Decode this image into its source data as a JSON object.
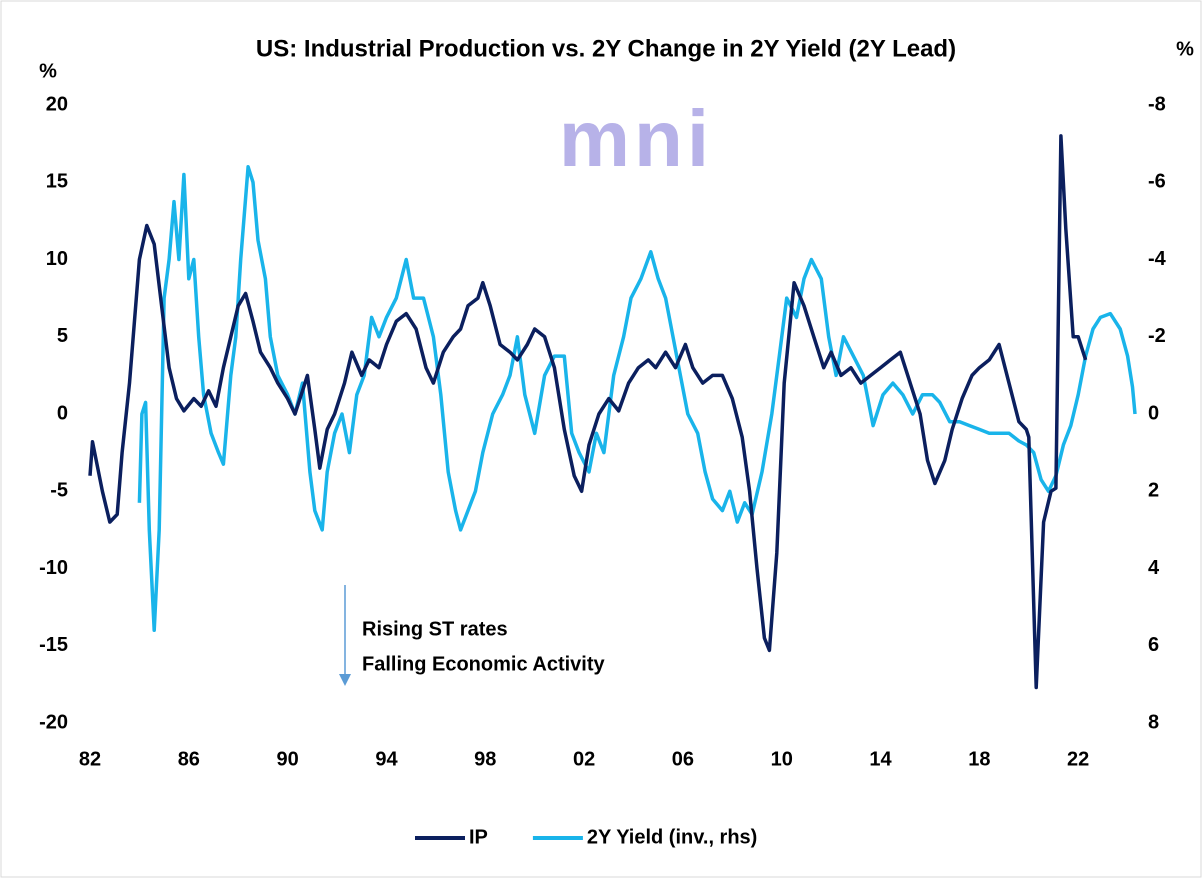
{
  "chart_data": {
    "type": "line",
    "title": "US: Industrial Production vs. 2Y Change in 2Y Yield (2Y Lead)",
    "y_label": "%",
    "y2_label": "%",
    "watermark": "mni",
    "annotations": [
      "Rising ST rates",
      "Falling Economic Activity"
    ],
    "xlim": [
      1982,
      2024.3
    ],
    "xticks": [
      {
        "value": 1982,
        "label": "82"
      },
      {
        "value": 1986,
        "label": "86"
      },
      {
        "value": 1990,
        "label": "90"
      },
      {
        "value": 1994,
        "label": "94"
      },
      {
        "value": 1998,
        "label": "98"
      },
      {
        "value": 2002,
        "label": "02"
      },
      {
        "value": 2006,
        "label": "06"
      },
      {
        "value": 2010,
        "label": "10"
      },
      {
        "value": 2014,
        "label": "14"
      },
      {
        "value": 2018,
        "label": "18"
      },
      {
        "value": 2022,
        "label": "22"
      }
    ],
    "ylim": [
      -20,
      20
    ],
    "yticks": [
      -20,
      -15,
      -10,
      -5,
      0,
      5,
      10,
      15,
      20
    ],
    "y2lim": [
      8,
      -8
    ],
    "y2ticks": [
      -8,
      -6,
      -4,
      -2,
      0,
      2,
      4,
      6,
      8
    ],
    "grid": false,
    "legend": "bottom",
    "series": [
      {
        "name": "IP",
        "color": "#0b1f5e",
        "axis": "y",
        "x": [
          1982.0,
          1982.1,
          1982.5,
          1982.8,
          1983.1,
          1983.3,
          1983.6,
          1984.0,
          1984.3,
          1984.6,
          1984.9,
          1985.2,
          1985.5,
          1985.8,
          1986.2,
          1986.5,
          1986.8,
          1987.1,
          1987.4,
          1987.7,
          1988.0,
          1988.3,
          1988.6,
          1988.9,
          1989.3,
          1989.6,
          1990.0,
          1990.3,
          1990.6,
          1990.8,
          1991.1,
          1991.3,
          1991.6,
          1991.9,
          1992.3,
          1992.6,
          1993.0,
          1993.3,
          1993.7,
          1994.0,
          1994.4,
          1994.8,
          1995.2,
          1995.6,
          1995.9,
          1996.3,
          1996.7,
          1997.0,
          1997.3,
          1997.7,
          1997.9,
          1998.2,
          1998.6,
          1999.0,
          1999.3,
          1999.7,
          2000.0,
          2000.4,
          2000.8,
          2001.2,
          2001.6,
          2001.9,
          2002.2,
          2002.6,
          2003.0,
          2003.4,
          2003.8,
          2004.2,
          2004.6,
          2004.9,
          2005.3,
          2005.7,
          2006.1,
          2006.4,
          2006.8,
          2007.2,
          2007.6,
          2008.0,
          2008.4,
          2008.7,
          2009.0,
          2009.3,
          2009.5,
          2009.8,
          2010.1,
          2010.5,
          2010.9,
          2011.3,
          2011.7,
          2012.0,
          2012.4,
          2012.8,
          2013.2,
          2013.6,
          2014.0,
          2014.4,
          2014.8,
          2015.2,
          2015.6,
          2015.9,
          2016.2,
          2016.6,
          2016.9,
          2017.3,
          2017.7,
          2018.0,
          2018.4,
          2018.8,
          2019.2,
          2019.6,
          2019.9,
          2020.0,
          2020.3,
          2020.6,
          2020.9,
          2021.1,
          2021.3,
          2021.5,
          2021.8,
          2022.0,
          2022.3
        ],
        "values": [
          -4,
          -1.8,
          -5,
          -7,
          -6.5,
          -2.5,
          2,
          10,
          12.2,
          11,
          7,
          3,
          1,
          0.2,
          1,
          0.5,
          1.5,
          0.5,
          3,
          5,
          7,
          7.8,
          6,
          4,
          3,
          2,
          1,
          0,
          1.5,
          2.5,
          -1,
          -3.5,
          -1,
          0,
          2,
          4,
          2.5,
          3.5,
          3,
          4.5,
          6,
          6.5,
          5.5,
          3,
          2,
          4,
          5,
          5.5,
          7,
          7.5,
          8.5,
          7,
          4.5,
          4,
          3.5,
          4.5,
          5.5,
          5,
          3,
          -1,
          -4,
          -5,
          -2,
          0,
          1,
          0.2,
          2,
          3,
          3.5,
          3,
          4,
          3,
          4.5,
          3,
          2,
          2.5,
          2.5,
          1,
          -1.5,
          -5,
          -10,
          -14.5,
          -15.3,
          -9,
          2,
          8.5,
          7,
          5,
          3,
          4,
          2.5,
          3,
          2,
          2.5,
          3,
          3.5,
          4,
          2,
          0,
          -3,
          -4.5,
          -3,
          -1,
          1,
          2.5,
          3,
          3.5,
          4.5,
          2,
          -0.5,
          -1,
          -1.5,
          -17.7,
          -7,
          -5,
          -4.8,
          18,
          12,
          5,
          5,
          3.5
        ]
      },
      {
        "name": "2Y Yield (inv., rhs)",
        "color": "#19b4ea",
        "axis": "y2",
        "x": [
          1984.0,
          1984.1,
          1984.25,
          1984.4,
          1984.6,
          1984.8,
          1985.0,
          1985.2,
          1985.4,
          1985.6,
          1985.8,
          1986.0,
          1986.2,
          1986.4,
          1986.6,
          1986.9,
          1987.2,
          1987.4,
          1987.7,
          1987.9,
          1988.1,
          1988.4,
          1988.6,
          1988.8,
          1989.1,
          1989.3,
          1989.6,
          1990.0,
          1990.3,
          1990.6,
          1990.9,
          1991.1,
          1991.4,
          1991.6,
          1991.9,
          1992.2,
          1992.5,
          1992.8,
          1993.1,
          1993.4,
          1993.7,
          1994.0,
          1994.4,
          1994.8,
          1995.1,
          1995.5,
          1995.9,
          1996.2,
          1996.5,
          1996.8,
          1997.0,
          1997.3,
          1997.6,
          1997.9,
          1998.3,
          1998.7,
          1999.0,
          1999.3,
          1999.6,
          2000.0,
          2000.4,
          2000.8,
          2001.2,
          2001.5,
          2001.8,
          2002.2,
          2002.5,
          2002.8,
          2003.2,
          2003.6,
          2003.9,
          2004.3,
          2004.7,
          2005.0,
          2005.3,
          2005.6,
          2005.9,
          2006.2,
          2006.6,
          2006.9,
          2007.2,
          2007.6,
          2007.9,
          2008.2,
          2008.5,
          2008.8,
          2009.2,
          2009.6,
          2009.9,
          2010.2,
          2010.6,
          2010.9,
          2011.2,
          2011.6,
          2011.9,
          2012.2,
          2012.5,
          2012.9,
          2013.3,
          2013.7,
          2014.1,
          2014.5,
          2014.9,
          2015.3,
          2015.7,
          2016.1,
          2016.4,
          2016.8,
          2017.2,
          2017.6,
          2018.0,
          2018.4,
          2018.8,
          2019.2,
          2019.6,
          2019.9,
          2020.2,
          2020.5,
          2020.8,
          2021.1,
          2021.4,
          2021.7,
          2022.0,
          2022.3,
          2022.6,
          2022.9,
          2023.3,
          2023.7,
          2024.0,
          2024.2,
          2024.3
        ],
        "values": [
          2.3,
          0,
          -0.3,
          3,
          5.6,
          3,
          -3,
          -4,
          -5.5,
          -4,
          -6.2,
          -3.5,
          -4,
          -2,
          -0.5,
          0.5,
          1,
          1.3,
          -1,
          -2,
          -4,
          -6.4,
          -6,
          -4.5,
          -3.5,
          -2,
          -1,
          -0.5,
          0,
          -0.8,
          1.5,
          2.5,
          3,
          1.5,
          0.5,
          0,
          1,
          -0.5,
          -1,
          -2.5,
          -2,
          -2.5,
          -3,
          -4,
          -3,
          -3,
          -2,
          -0.5,
          1.5,
          2.5,
          3,
          2.5,
          2,
          1,
          0,
          -0.5,
          -1,
          -2,
          -0.5,
          0.5,
          -1,
          -1.5,
          -1.5,
          0.5,
          1,
          1.5,
          0.5,
          1,
          -1,
          -2,
          -3,
          -3.5,
          -4.2,
          -3.5,
          -3,
          -2,
          -1,
          0,
          0.5,
          1.5,
          2.2,
          2.5,
          2,
          2.8,
          2.3,
          2.6,
          1.5,
          0,
          -1.5,
          -3,
          -2.5,
          -3.5,
          -4,
          -3.5,
          -2,
          -1,
          -2,
          -1.5,
          -1,
          0.3,
          -0.5,
          -0.8,
          -0.5,
          0,
          -0.5,
          -0.5,
          -0.3,
          0.2,
          0.2,
          0.3,
          0.4,
          0.5,
          0.5,
          0.5,
          0.7,
          0.8,
          1,
          1.7,
          2,
          1.6,
          0.8,
          0.3,
          -0.5,
          -1.5,
          -2.2,
          -2.5,
          -2.6,
          -2.2,
          -1.5,
          -0.7,
          0
        ]
      }
    ]
  }
}
